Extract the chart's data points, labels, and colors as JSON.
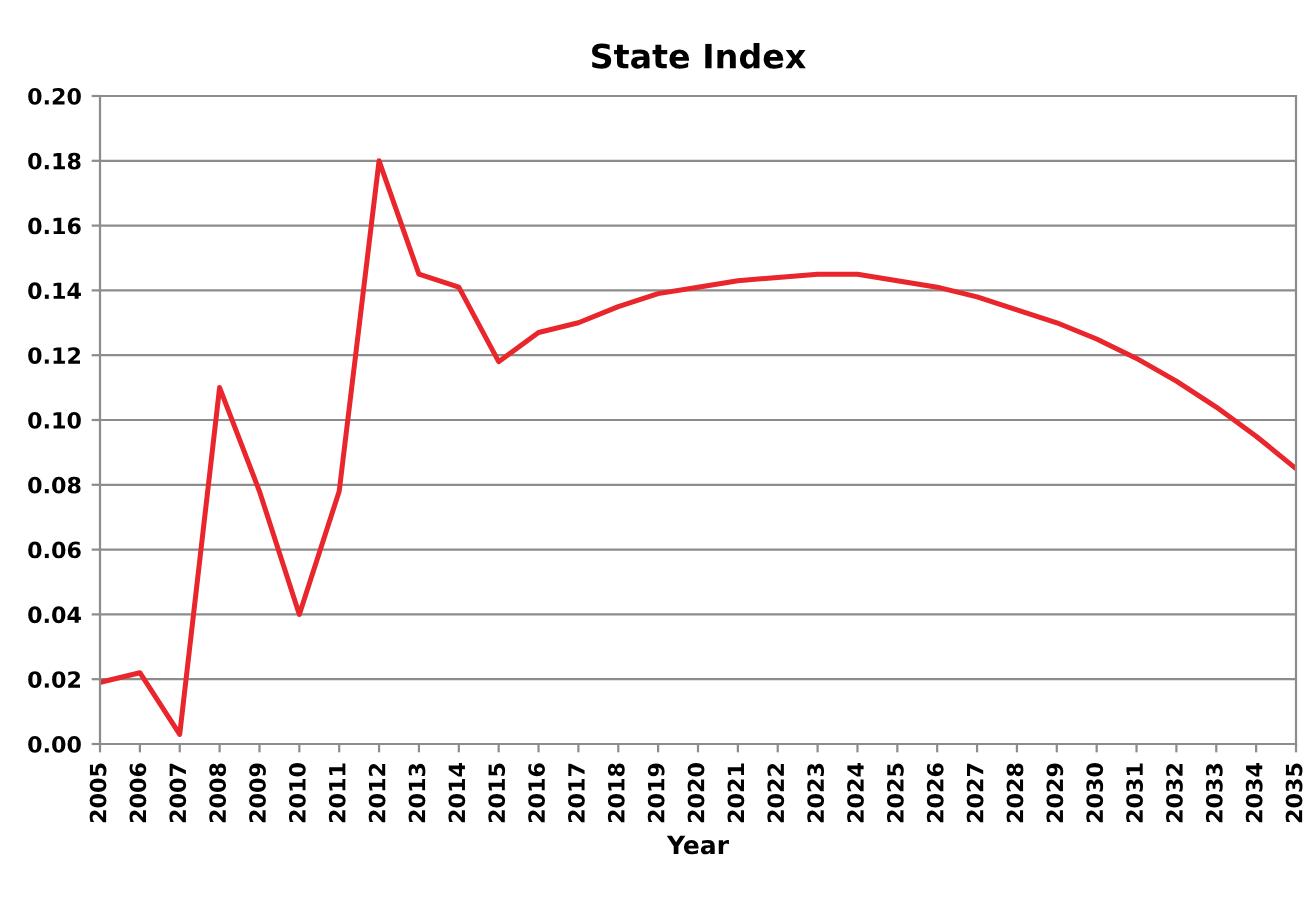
{
  "chart_data": {
    "type": "line",
    "title": "State Index",
    "xlabel": "Year",
    "x": [
      2005,
      2006,
      2007,
      2008,
      2009,
      2010,
      2011,
      2012,
      2013,
      2014,
      2015,
      2016,
      2017,
      2018,
      2019,
      2020,
      2021,
      2022,
      2023,
      2024,
      2025,
      2026,
      2027,
      2028,
      2029,
      2030,
      2031,
      2032,
      2033,
      2034,
      2035
    ],
    "series": [
      {
        "color": "#e8262b",
        "values": [
          0.019,
          0.022,
          0.003,
          0.11,
          0.078,
          0.04,
          0.078,
          0.18,
          0.145,
          0.141,
          0.118,
          0.127,
          0.13,
          0.135,
          0.139,
          0.141,
          0.143,
          0.144,
          0.145,
          0.145,
          0.143,
          0.141,
          0.138,
          0.134,
          0.13,
          0.125,
          0.119,
          0.112,
          0.104,
          0.095,
          0.085
        ]
      }
    ],
    "xlim": [
      2005,
      2035
    ],
    "xticks": [
      2005,
      2006,
      2007,
      2008,
      2009,
      2010,
      2011,
      2012,
      2013,
      2014,
      2015,
      2016,
      2017,
      2018,
      2019,
      2020,
      2021,
      2022,
      2023,
      2024,
      2025,
      2026,
      2027,
      2028,
      2029,
      2030,
      2031,
      2032,
      2033,
      2034,
      2035
    ],
    "ylim": [
      0,
      0.2
    ],
    "yticks": [
      {
        "value": 0,
        "label": "0.00"
      },
      {
        "value": 0.02,
        "label": "0.02"
      },
      {
        "value": 0.04,
        "label": "0.04"
      },
      {
        "value": 0.06,
        "label": "0.06"
      },
      {
        "value": 0.08,
        "label": "0.08"
      },
      {
        "value": 0.1,
        "label": "0.10"
      },
      {
        "value": 0.12,
        "label": "0.12"
      },
      {
        "value": 0.14,
        "label": "0.14"
      },
      {
        "value": 0.16,
        "label": "0.16"
      },
      {
        "value": 0.18,
        "label": "0.18"
      },
      {
        "value": 0.2,
        "label": "0.20"
      }
    ],
    "grid": "y",
    "marker": "none",
    "line_style": "solid"
  }
}
